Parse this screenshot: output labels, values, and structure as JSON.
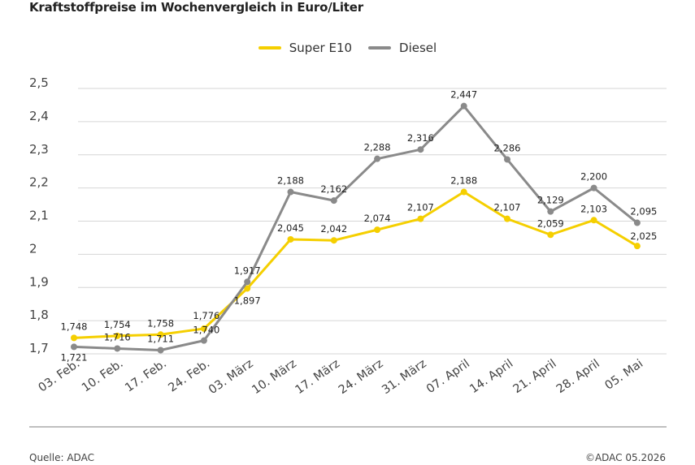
{
  "title": "Kraftstoffpreise im Wochenvergleich in Euro/Liter",
  "source": "Quelle: ADAC",
  "copyright": "©ADAC 05.2026",
  "colors": {
    "super": "#f5cf00",
    "diesel": "#8a8a8a",
    "grid": "#d6d6d6",
    "axis": "#aaaaaa"
  },
  "chart_data": {
    "type": "line",
    "categories": [
      "03. Feb.",
      "10. Feb.",
      "17. Feb.",
      "24. Feb.",
      "03. März",
      "10. März",
      "17. März",
      "24. März",
      "31. März",
      "07. April",
      "14. April",
      "21. April",
      "28. April",
      "05. Mai"
    ],
    "series": [
      {
        "name": "Super E10",
        "color": "#f5cf00",
        "values": [
          1.748,
          1.754,
          1.758,
          1.776,
          1.897,
          2.045,
          2.042,
          2.074,
          2.107,
          2.188,
          2.107,
          2.059,
          2.103,
          2.025
        ],
        "labels": [
          "1,748",
          "1,754",
          "1,758",
          "1,776",
          "1,897",
          "2,045",
          "2,042",
          "2,074",
          "2,107",
          "2,188",
          "2,107",
          "2,059",
          "2,103",
          "2,025"
        ]
      },
      {
        "name": "Diesel",
        "color": "#8a8a8a",
        "values": [
          1.721,
          1.716,
          1.711,
          1.74,
          1.917,
          2.188,
          2.162,
          2.288,
          2.316,
          2.447,
          2.286,
          2.129,
          2.2,
          2.095
        ],
        "labels": [
          "1,721",
          "1,716",
          "1,711",
          "1,740",
          "1,917",
          "2,188",
          "2,162",
          "2,288",
          "2,316",
          "2,447",
          "2,286",
          "2,129",
          "2,200",
          "2,095"
        ]
      }
    ],
    "yticks": [
      1.7,
      1.8,
      1.9,
      2.0,
      2.1,
      2.2,
      2.3,
      2.4,
      2.5
    ],
    "ytick_labels": [
      "1,7",
      "1,8",
      "1,9",
      "2",
      "2,1",
      "2,2",
      "2,3",
      "2,4",
      "2,5"
    ],
    "ylim": [
      1.7,
      2.5
    ],
    "grid": true,
    "legend": "top-center"
  }
}
